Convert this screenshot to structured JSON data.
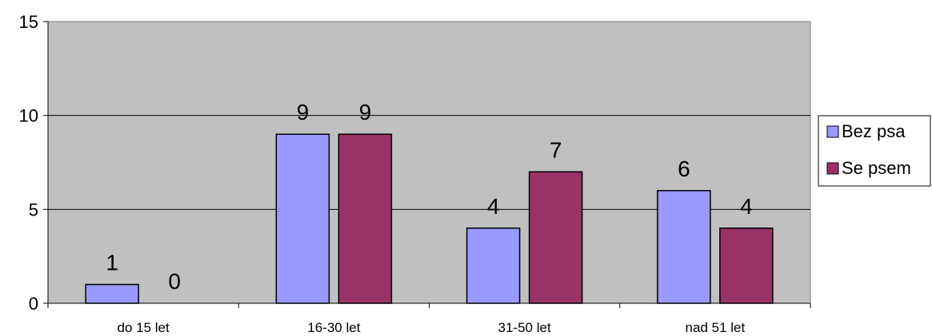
{
  "chart_data": {
    "type": "bar",
    "categories": [
      "do 15 let",
      "16-30 let",
      "31-50 let",
      "nad 51 let"
    ],
    "series": [
      {
        "name": "Bez psa",
        "values": [
          1,
          9,
          4,
          6
        ],
        "color": "#9999ff"
      },
      {
        "name": "Se psem",
        "values": [
          0,
          9,
          7,
          4
        ],
        "color": "#993366"
      }
    ],
    "ylim": [
      0,
      15
    ],
    "yticks": [
      0,
      5,
      10,
      15
    ],
    "grid": true,
    "legend_position": "right",
    "plot_background": "#c0c0c0",
    "title": "",
    "xlabel": "",
    "ylabel": ""
  }
}
